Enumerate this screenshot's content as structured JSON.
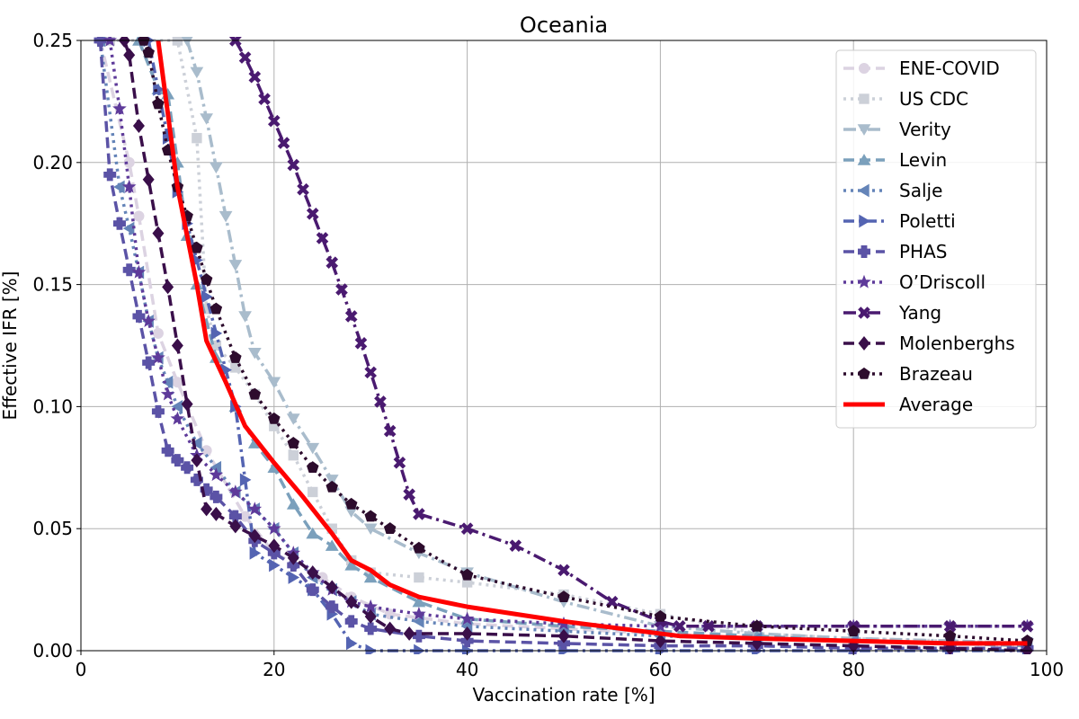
{
  "chart_data": {
    "type": "line",
    "title": "Oceania",
    "xlabel": "Vaccination rate [%]",
    "ylabel": "Effective IFR [%]",
    "xlim": [
      0,
      100
    ],
    "ylim": [
      0,
      0.25
    ],
    "xticks": [
      "0",
      "20",
      "40",
      "60",
      "80",
      "100"
    ],
    "yticks": [
      "0.00",
      "0.05",
      "0.10",
      "0.15",
      "0.20",
      "0.25"
    ],
    "grid": true,
    "legend_position": "top-right",
    "series": [
      {
        "name": "ENE-COVID",
        "color": "#dcd3e2",
        "dash": "12,6",
        "marker": "circle",
        "x": [
          2,
          5,
          6,
          8,
          10,
          13,
          17,
          20,
          25,
          28,
          32,
          40,
          50,
          60,
          70,
          80,
          90,
          98
        ],
        "y": [
          0.25,
          0.2,
          0.178,
          0.13,
          0.11,
          0.082,
          0.055,
          0.04,
          0.03,
          0.022,
          0.015,
          0.011,
          0.009,
          0.007,
          0.005,
          0.004,
          0.003,
          0.002
        ]
      },
      {
        "name": "US CDC",
        "color": "#ccd0d8",
        "dash": "3,5",
        "marker": "square",
        "x": [
          3,
          10,
          12,
          13,
          14,
          16,
          18,
          20,
          22,
          24,
          26,
          28,
          30,
          35,
          40,
          50,
          60,
          70,
          80,
          90,
          98
        ],
        "y": [
          0.25,
          0.25,
          0.21,
          0.14,
          0.125,
          0.116,
          0.105,
          0.092,
          0.08,
          0.065,
          0.05,
          0.037,
          0.032,
          0.03,
          0.028,
          0.023,
          0.015,
          0.007,
          0.005,
          0.004,
          0.003
        ]
      },
      {
        "name": "Verity",
        "color": "#a9bccc",
        "dash": "14,5,3,5",
        "marker": "triangle-down",
        "x": [
          11,
          12,
          13,
          14,
          15,
          16,
          17,
          18,
          20,
          22,
          24,
          26,
          28,
          30,
          35,
          40,
          50,
          60,
          70,
          80,
          90,
          98
        ],
        "y": [
          0.25,
          0.237,
          0.218,
          0.198,
          0.178,
          0.158,
          0.137,
          0.122,
          0.11,
          0.095,
          0.083,
          0.07,
          0.057,
          0.05,
          0.04,
          0.032,
          0.02,
          0.01,
          0.007,
          0.005,
          0.004,
          0.003
        ]
      },
      {
        "name": "Levin",
        "color": "#7ba0bc",
        "dash": "12,6",
        "marker": "triangle-up",
        "x": [
          6,
          8,
          9,
          10,
          11,
          12,
          14,
          16,
          18,
          20,
          22,
          24,
          26,
          28,
          30,
          35,
          40,
          50,
          60,
          70,
          80,
          90,
          98
        ],
        "y": [
          0.25,
          0.23,
          0.228,
          0.2,
          0.17,
          0.15,
          0.12,
          0.1,
          0.085,
          0.075,
          0.06,
          0.048,
          0.043,
          0.035,
          0.03,
          0.02,
          0.013,
          0.01,
          0.008,
          0.006,
          0.004,
          0.003,
          0.002
        ]
      },
      {
        "name": "Salje",
        "color": "#6484b8",
        "dash": "3,5",
        "marker": "triangle-left",
        "x": [
          2,
          4,
          5,
          6,
          7,
          8,
          9,
          10,
          12,
          14,
          16,
          18,
          20,
          22,
          24,
          26,
          28,
          30,
          35,
          40,
          50,
          60,
          70,
          80,
          90,
          98
        ],
        "y": [
          0.25,
          0.19,
          0.173,
          0.155,
          0.135,
          0.12,
          0.11,
          0.1,
          0.085,
          0.075,
          0.065,
          0.058,
          0.05,
          0.04,
          0.03,
          0.025,
          0.02,
          0.015,
          0.012,
          0.01,
          0.008,
          0.006,
          0.005,
          0.004,
          0.003,
          0.003
        ]
      },
      {
        "name": "Poletti",
        "color": "#5464b2",
        "dash": "12,5,3,5",
        "marker": "triangle-right",
        "x": [
          7,
          8,
          9,
          10,
          11,
          12,
          13,
          14,
          15,
          16,
          17,
          18,
          20,
          22,
          24,
          26,
          28,
          30,
          35,
          40,
          50,
          60,
          70,
          80,
          90,
          98
        ],
        "y": [
          0.25,
          0.23,
          0.21,
          0.188,
          0.175,
          0.16,
          0.145,
          0.13,
          0.115,
          0.1,
          0.07,
          0.04,
          0.035,
          0.03,
          0.025,
          0.015,
          0.003,
          0.0,
          0.0,
          0.0,
          0.0,
          0.0,
          0.0,
          0.0,
          0.0,
          0.0
        ]
      },
      {
        "name": "PHAS",
        "color": "#5b53a6",
        "dash": "12,6",
        "marker": "plus",
        "x": [
          2,
          3,
          4,
          5,
          6,
          7,
          8,
          9,
          10,
          11,
          12,
          13,
          14,
          16,
          18,
          20,
          22,
          24,
          26,
          28,
          30,
          35,
          40,
          50,
          60,
          70,
          80,
          90,
          98
        ],
        "y": [
          0.25,
          0.195,
          0.175,
          0.156,
          0.137,
          0.118,
          0.098,
          0.082,
          0.078,
          0.075,
          0.07,
          0.066,
          0.063,
          0.055,
          0.045,
          0.04,
          0.035,
          0.025,
          0.018,
          0.012,
          0.009,
          0.006,
          0.004,
          0.003,
          0.002,
          0.002,
          0.001,
          0.001,
          0.001
        ]
      },
      {
        "name": "O’Driscoll",
        "color": "#5e3a9a",
        "dash": "3,5",
        "marker": "star",
        "x": [
          3,
          4,
          5,
          6,
          7,
          8,
          9,
          10,
          12,
          14,
          16,
          18,
          20,
          22,
          24,
          26,
          28,
          30,
          35,
          40,
          50,
          60,
          70,
          80,
          90,
          98
        ],
        "y": [
          0.25,
          0.222,
          0.19,
          0.155,
          0.135,
          0.12,
          0.105,
          0.095,
          0.08,
          0.072,
          0.065,
          0.058,
          0.05,
          0.04,
          0.032,
          0.025,
          0.02,
          0.018,
          0.015,
          0.013,
          0.011,
          0.01,
          0.01,
          0.01,
          0.01,
          0.01
        ]
      },
      {
        "name": "Yang",
        "color": "#4a1a70",
        "dash": "14,5,3,5",
        "marker": "x",
        "x": [
          16,
          17,
          18,
          19,
          20,
          21,
          22,
          23,
          24,
          25,
          26,
          27,
          28,
          29,
          30,
          31,
          32,
          33,
          34,
          35,
          40,
          45,
          50,
          55,
          60,
          62,
          65,
          70,
          80,
          90,
          98
        ],
        "y": [
          0.25,
          0.243,
          0.235,
          0.226,
          0.217,
          0.208,
          0.199,
          0.189,
          0.179,
          0.169,
          0.159,
          0.148,
          0.137,
          0.126,
          0.114,
          0.102,
          0.09,
          0.077,
          0.064,
          0.056,
          0.05,
          0.043,
          0.033,
          0.02,
          0.012,
          0.01,
          0.01,
          0.01,
          0.01,
          0.01,
          0.01
        ]
      },
      {
        "name": "Molenberghs",
        "color": "#3a0f4a",
        "dash": "12,6",
        "marker": "diamond",
        "x": [
          4.5,
          5,
          6,
          7,
          8,
          9,
          10,
          11,
          12,
          13,
          14,
          16,
          18,
          20,
          22,
          24,
          26,
          28,
          30,
          32,
          34,
          40,
          50,
          60,
          70,
          80,
          90,
          98
        ],
        "y": [
          0.25,
          0.244,
          0.215,
          0.193,
          0.171,
          0.149,
          0.125,
          0.101,
          0.078,
          0.058,
          0.056,
          0.051,
          0.047,
          0.043,
          0.038,
          0.032,
          0.026,
          0.02,
          0.014,
          0.009,
          0.007,
          0.007,
          0.006,
          0.004,
          0.003,
          0.002,
          0.001,
          0.0
        ]
      },
      {
        "name": "Brazeau",
        "color": "#2d0c2d",
        "dash": "3,5",
        "marker": "pentagon",
        "x": [
          6.5,
          7,
          8,
          9,
          10,
          11,
          12,
          13,
          14,
          16,
          18,
          20,
          22,
          24,
          26,
          28,
          30,
          32,
          35,
          40,
          50,
          60,
          70,
          80,
          90,
          98
        ],
        "y": [
          0.25,
          0.245,
          0.224,
          0.205,
          0.19,
          0.178,
          0.165,
          0.152,
          0.14,
          0.12,
          0.105,
          0.095,
          0.085,
          0.075,
          0.067,
          0.06,
          0.055,
          0.05,
          0.042,
          0.031,
          0.022,
          0.014,
          0.01,
          0.008,
          0.006,
          0.004
        ]
      },
      {
        "name": "Average",
        "color": "#ff0000",
        "dash": "",
        "marker": "none",
        "x": [
          8,
          9,
          10,
          11,
          12,
          13,
          15,
          17,
          20,
          23,
          26,
          28,
          30,
          32,
          35,
          40,
          50,
          62,
          70,
          80,
          90,
          98
        ],
        "y": [
          0.25,
          0.22,
          0.19,
          0.17,
          0.15,
          0.127,
          0.11,
          0.092,
          0.077,
          0.063,
          0.048,
          0.037,
          0.033,
          0.027,
          0.022,
          0.018,
          0.012,
          0.006,
          0.005,
          0.004,
          0.003,
          0.003
        ]
      }
    ]
  }
}
